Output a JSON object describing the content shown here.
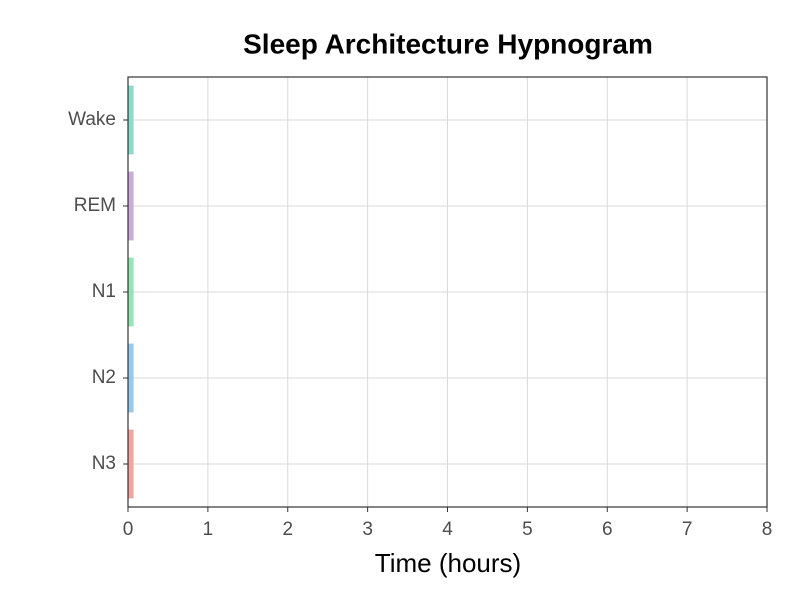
{
  "chart_data": {
    "type": "bar",
    "orientation": "horizontal",
    "title": "Sleep Architecture Hypnogram",
    "x_label": "Time (hours)",
    "categories": [
      "Wake",
      "REM",
      "N1",
      "N2",
      "N3"
    ],
    "values": [
      0.07,
      0.07,
      0.07,
      0.07,
      0.07
    ],
    "colors": [
      "#76d7c4",
      "#c39bd3",
      "#82e0aa",
      "#85c1e9",
      "#f1948a"
    ],
    "xlim": [
      0,
      8
    ],
    "xticks": [
      0,
      1,
      2,
      3,
      4,
      5,
      6,
      7,
      8
    ],
    "grid": true
  }
}
